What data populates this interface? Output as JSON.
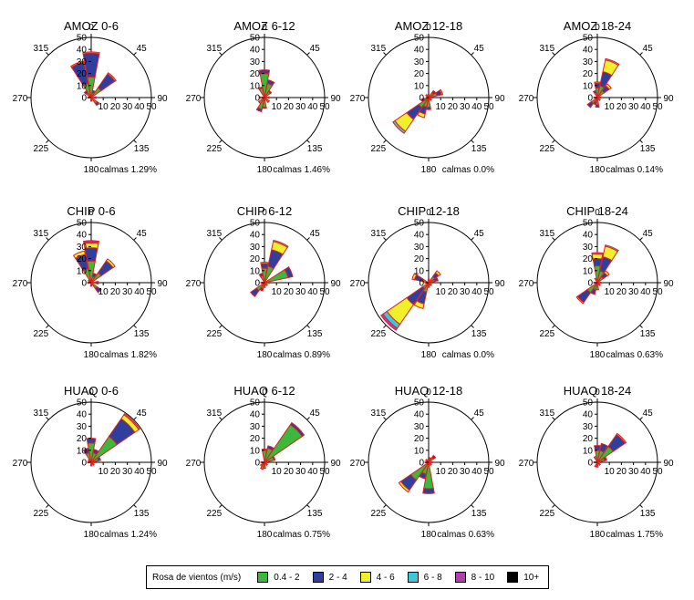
{
  "legend": {
    "title": "Rosa de vientos (m/s)",
    "bins": [
      {
        "label": "0.4 - 2",
        "color": "#3cb83c"
      },
      {
        "label": "2 - 4",
        "color": "#2e3f9e"
      },
      {
        "label": "4 - 6",
        "color": "#f0f02a"
      },
      {
        "label": "6 - 8",
        "color": "#3cc8d8"
      },
      {
        "label": "8 - 10",
        "color": "#b040b0"
      },
      {
        "label": "10+",
        "color": "#000000"
      }
    ]
  },
  "chart_data": [
    {
      "type": "windrose",
      "title": "AMOZ 0-6",
      "calms": "calmas 1.29%",
      "rlim": [
        0,
        50
      ],
      "rticks": [
        "0",
        "10",
        "20",
        "30",
        "40",
        "50"
      ],
      "angle_labels": [
        "0",
        "45",
        "90",
        "135",
        "180",
        "225",
        "270",
        "315"
      ],
      "petals": [
        {
          "dir": 0,
          "stack": [
            17,
            20,
            1
          ]
        },
        {
          "dir": 337.5,
          "stack": [
            12,
            18,
            1
          ]
        },
        {
          "dir": 45,
          "stack": [
            10,
            14,
            1
          ]
        },
        {
          "dir": 22.5,
          "stack": [
            4,
            2
          ]
        },
        {
          "dir": 315,
          "stack": [
            5,
            2
          ]
        },
        {
          "dir": 90,
          "stack": [
            3,
            1
          ]
        },
        {
          "dir": 135,
          "stack": [
            6,
            2
          ]
        },
        {
          "dir": 180,
          "stack": [
            3
          ]
        },
        {
          "dir": 270,
          "stack": [
            3
          ]
        },
        {
          "dir": 292.5,
          "stack": [
            2
          ]
        }
      ]
    },
    {
      "type": "windrose",
      "title": "AMOZ 6-12",
      "calms": "calmas 1.46%",
      "rlim": [
        0,
        50
      ],
      "rticks": [
        "0",
        "10",
        "20",
        "30",
        "40",
        "50"
      ],
      "angle_labels": [
        "0",
        "45",
        "90",
        "135",
        "180",
        "225",
        "270",
        "315"
      ],
      "petals": [
        {
          "dir": 0,
          "stack": [
            20,
            3
          ]
        },
        {
          "dir": 22.5,
          "stack": [
            12,
            3
          ]
        },
        {
          "dir": 45,
          "stack": [
            6,
            1
          ]
        },
        {
          "dir": 337.5,
          "stack": [
            8,
            1
          ]
        },
        {
          "dir": 180,
          "stack": [
            8,
            1
          ]
        },
        {
          "dir": 202.5,
          "stack": [
            10,
            2
          ]
        },
        {
          "dir": 225,
          "stack": [
            6
          ]
        },
        {
          "dir": 135,
          "stack": [
            5
          ]
        },
        {
          "dir": 90,
          "stack": [
            4
          ]
        },
        {
          "dir": 270,
          "stack": [
            4
          ]
        }
      ]
    },
    {
      "type": "windrose",
      "title": "AMOZ 12-18",
      "calms": "calmas 0.0%",
      "rlim": [
        0,
        50
      ],
      "rticks": [
        "0",
        "10",
        "20",
        "30",
        "40",
        "50"
      ],
      "angle_labels": [
        "0",
        "45",
        "90",
        "135",
        "180",
        "225",
        "270",
        "315"
      ],
      "petals": [
        {
          "dir": 225,
          "stack": [
            10,
            12,
            12,
            2
          ]
        },
        {
          "dir": 202.5,
          "stack": [
            8,
            6,
            3
          ]
        },
        {
          "dir": 180,
          "stack": [
            8,
            2
          ]
        },
        {
          "dir": 67.5,
          "stack": [
            7,
            4,
            1
          ]
        },
        {
          "dir": 45,
          "stack": [
            5,
            2
          ]
        },
        {
          "dir": 247.5,
          "stack": [
            4,
            2
          ]
        },
        {
          "dir": 0,
          "stack": [
            3
          ]
        },
        {
          "dir": 90,
          "stack": [
            3
          ]
        },
        {
          "dir": 135,
          "stack": [
            3
          ]
        },
        {
          "dir": 315,
          "stack": [
            3
          ]
        }
      ]
    },
    {
      "type": "windrose",
      "title": "AMOZ 18-24",
      "calms": "calmas 0.14%",
      "rlim": [
        0,
        50
      ],
      "rticks": [
        "0",
        "10",
        "20",
        "30",
        "40",
        "50"
      ],
      "angle_labels": [
        "0",
        "45",
        "90",
        "135",
        "180",
        "225",
        "270",
        "315"
      ],
      "petals": [
        {
          "dir": 22.5,
          "stack": [
            10,
            12,
            10,
            1
          ]
        },
        {
          "dir": 45,
          "stack": [
            7,
            5,
            2
          ]
        },
        {
          "dir": 0,
          "stack": [
            8,
            4,
            1
          ]
        },
        {
          "dir": 337.5,
          "stack": [
            4,
            2
          ]
        },
        {
          "dir": 225,
          "stack": [
            6,
            4
          ]
        },
        {
          "dir": 180,
          "stack": [
            6,
            2
          ]
        },
        {
          "dir": 202.5,
          "stack": [
            4,
            2
          ]
        },
        {
          "dir": 135,
          "stack": [
            3
          ]
        },
        {
          "dir": 270,
          "stack": [
            3
          ]
        },
        {
          "dir": 90,
          "stack": [
            3
          ]
        }
      ]
    },
    {
      "type": "windrose",
      "title": "CHIP 0-6",
      "calms": "calmas 1.82%",
      "rlim": [
        0,
        50
      ],
      "rticks": [
        "0",
        "10",
        "20",
        "30",
        "40",
        "50"
      ],
      "angle_labels": [
        "0",
        "45",
        "90",
        "135",
        "180",
        "225",
        "270",
        "315"
      ],
      "petals": [
        {
          "dir": 0,
          "stack": [
            18,
            11,
            4,
            1,
            1
          ]
        },
        {
          "dir": 337.5,
          "stack": [
            12,
            12,
            3
          ]
        },
        {
          "dir": 45,
          "stack": [
            10,
            12,
            2
          ]
        },
        {
          "dir": 22.5,
          "stack": [
            5,
            3
          ]
        },
        {
          "dir": 135,
          "stack": [
            6,
            4
          ]
        },
        {
          "dir": 90,
          "stack": [
            4,
            2
          ]
        },
        {
          "dir": 180,
          "stack": [
            3
          ]
        },
        {
          "dir": 270,
          "stack": [
            3
          ]
        },
        {
          "dir": 315,
          "stack": [
            3
          ]
        }
      ]
    },
    {
      "type": "windrose",
      "title": "CHIP 6-12",
      "calms": "calmas 0.89%",
      "rlim": [
        0,
        50
      ],
      "rticks": [
        "0",
        "10",
        "20",
        "30",
        "40",
        "50"
      ],
      "angle_labels": [
        "0",
        "45",
        "90",
        "135",
        "180",
        "225",
        "270",
        "315"
      ],
      "petals": [
        {
          "dir": 22.5,
          "stack": [
            14,
            14,
            7,
            1
          ]
        },
        {
          "dir": 67.5,
          "stack": [
            20,
            4
          ]
        },
        {
          "dir": 0,
          "stack": [
            12,
            4,
            1
          ]
        },
        {
          "dir": 337.5,
          "stack": [
            6,
            2
          ]
        },
        {
          "dir": 225,
          "stack": [
            8,
            6
          ]
        },
        {
          "dir": 202.5,
          "stack": [
            5,
            2
          ]
        },
        {
          "dir": 180,
          "stack": [
            4
          ]
        },
        {
          "dir": 90,
          "stack": [
            4
          ]
        },
        {
          "dir": 135,
          "stack": [
            3
          ]
        },
        {
          "dir": 270,
          "stack": [
            3
          ]
        }
      ]
    },
    {
      "type": "windrose",
      "title": "CHIP 12-18",
      "calms": "calmas 0.0%",
      "rlim": [
        0,
        50
      ],
      "rticks": [
        "0",
        "10",
        "20",
        "30",
        "40",
        "50"
      ],
      "angle_labels": [
        "0",
        "45",
        "90",
        "135",
        "180",
        "225",
        "270",
        "315"
      ],
      "petals": [
        {
          "dir": 225,
          "stack": [
            6,
            16,
            20,
            4,
            2
          ]
        },
        {
          "dir": 202.5,
          "stack": [
            8,
            10,
            4
          ]
        },
        {
          "dir": 292.5,
          "stack": [
            6,
            6,
            2
          ]
        },
        {
          "dir": 45,
          "stack": [
            6,
            4,
            2
          ]
        },
        {
          "dir": 67.5,
          "stack": [
            5,
            3
          ]
        },
        {
          "dir": 0,
          "stack": [
            3
          ]
        },
        {
          "dir": 90,
          "stack": [
            3
          ]
        },
        {
          "dir": 135,
          "stack": [
            3
          ]
        },
        {
          "dir": 180,
          "stack": [
            4
          ]
        },
        {
          "dir": 270,
          "stack": [
            3
          ]
        }
      ]
    },
    {
      "type": "windrose",
      "title": "CHIP 18-24",
      "calms": "calmas 0.63%",
      "rlim": [
        0,
        50
      ],
      "rticks": [
        "0",
        "10",
        "20",
        "30",
        "40",
        "50"
      ],
      "angle_labels": [
        "0",
        "45",
        "90",
        "135",
        "180",
        "225",
        "270",
        "315"
      ],
      "petals": [
        {
          "dir": 22.5,
          "stack": [
            10,
            12,
            9,
            1
          ]
        },
        {
          "dir": 0,
          "stack": [
            14,
            6,
            4,
            1
          ]
        },
        {
          "dir": 45,
          "stack": [
            6,
            4,
            2
          ]
        },
        {
          "dir": 225,
          "stack": [
            10,
            10,
            1
          ]
        },
        {
          "dir": 202.5,
          "stack": [
            6,
            4
          ]
        },
        {
          "dir": 180,
          "stack": [
            6
          ]
        },
        {
          "dir": 337.5,
          "stack": [
            4
          ]
        },
        {
          "dir": 135,
          "stack": [
            3
          ]
        },
        {
          "dir": 90,
          "stack": [
            3
          ]
        },
        {
          "dir": 270,
          "stack": [
            3
          ]
        }
      ]
    },
    {
      "type": "windrose",
      "title": "HUAQ 0-6",
      "calms": "calmas 1.24%",
      "rlim": [
        0,
        50
      ],
      "rticks": [
        "0",
        "10",
        "20",
        "30",
        "40",
        "50"
      ],
      "angle_labels": [
        "0",
        "45",
        "90",
        "135",
        "180",
        "225",
        "270",
        "315"
      ],
      "petals": [
        {
          "dir": 45,
          "stack": [
            26,
            18,
            4,
            1
          ]
        },
        {
          "dir": 0,
          "stack": [
            16,
            4
          ]
        },
        {
          "dir": 337.5,
          "stack": [
            8,
            4
          ]
        },
        {
          "dir": 22.5,
          "stack": [
            8,
            3
          ]
        },
        {
          "dir": 67.5,
          "stack": [
            6,
            2
          ]
        },
        {
          "dir": 90,
          "stack": [
            3
          ]
        },
        {
          "dir": 135,
          "stack": [
            3
          ]
        },
        {
          "dir": 180,
          "stack": [
            3
          ]
        },
        {
          "dir": 270,
          "stack": [
            3
          ]
        },
        {
          "dir": 315,
          "stack": [
            3
          ]
        }
      ]
    },
    {
      "type": "windrose",
      "title": "HUAQ 6-12",
      "calms": "calmas 0.75%",
      "rlim": [
        0,
        50
      ],
      "rticks": [
        "0",
        "10",
        "20",
        "30",
        "40",
        "50"
      ],
      "angle_labels": [
        "0",
        "45",
        "90",
        "135",
        "180",
        "225",
        "270",
        "315"
      ],
      "petals": [
        {
          "dir": 45,
          "stack": [
            38,
            2
          ]
        },
        {
          "dir": 22.5,
          "stack": [
            12,
            2
          ]
        },
        {
          "dir": 0,
          "stack": [
            10,
            1
          ]
        },
        {
          "dir": 67.5,
          "stack": [
            8,
            1
          ]
        },
        {
          "dir": 180,
          "stack": [
            5
          ]
        },
        {
          "dir": 202.5,
          "stack": [
            6
          ]
        },
        {
          "dir": 225,
          "stack": [
            4
          ]
        },
        {
          "dir": 135,
          "stack": [
            3
          ]
        },
        {
          "dir": 90,
          "stack": [
            3
          ]
        },
        {
          "dir": 270,
          "stack": [
            3
          ]
        }
      ]
    },
    {
      "type": "windrose",
      "title": "HUAQ 12-18",
      "calms": "calmas 0.63%",
      "rlim": [
        0,
        50
      ],
      "rticks": [
        "0",
        "10",
        "20",
        "30",
        "40",
        "50"
      ],
      "angle_labels": [
        "0",
        "45",
        "90",
        "135",
        "180",
        "225",
        "270",
        "315"
      ],
      "petals": [
        {
          "dir": 225,
          "stack": [
            18,
            10,
            2
          ]
        },
        {
          "dir": 180,
          "stack": [
            22,
            4
          ]
        },
        {
          "dir": 202.5,
          "stack": [
            10,
            4
          ]
        },
        {
          "dir": 45,
          "stack": [
            5,
            2
          ]
        },
        {
          "dir": 22.5,
          "stack": [
            4
          ]
        },
        {
          "dir": 0,
          "stack": [
            3
          ]
        },
        {
          "dir": 90,
          "stack": [
            3
          ]
        },
        {
          "dir": 135,
          "stack": [
            3
          ]
        },
        {
          "dir": 270,
          "stack": [
            3
          ]
        },
        {
          "dir": 315,
          "stack": [
            3
          ]
        }
      ]
    },
    {
      "type": "windrose",
      "title": "HUAQ 18-24",
      "calms": "calmas 1.75%",
      "rlim": [
        0,
        50
      ],
      "rticks": [
        "0",
        "10",
        "20",
        "30",
        "40",
        "50"
      ],
      "angle_labels": [
        "0",
        "45",
        "90",
        "135",
        "180",
        "225",
        "270",
        "315"
      ],
      "petals": [
        {
          "dir": 45,
          "stack": [
            16,
            12,
            1
          ]
        },
        {
          "dir": 22.5,
          "stack": [
            10,
            6
          ]
        },
        {
          "dir": 0,
          "stack": [
            10,
            4
          ]
        },
        {
          "dir": 67.5,
          "stack": [
            6,
            2
          ]
        },
        {
          "dir": 337.5,
          "stack": [
            5
          ]
        },
        {
          "dir": 180,
          "stack": [
            4
          ]
        },
        {
          "dir": 202.5,
          "stack": [
            4
          ]
        },
        {
          "dir": 135,
          "stack": [
            3
          ]
        },
        {
          "dir": 90,
          "stack": [
            3
          ]
        },
        {
          "dir": 270,
          "stack": [
            3
          ]
        }
      ]
    }
  ]
}
